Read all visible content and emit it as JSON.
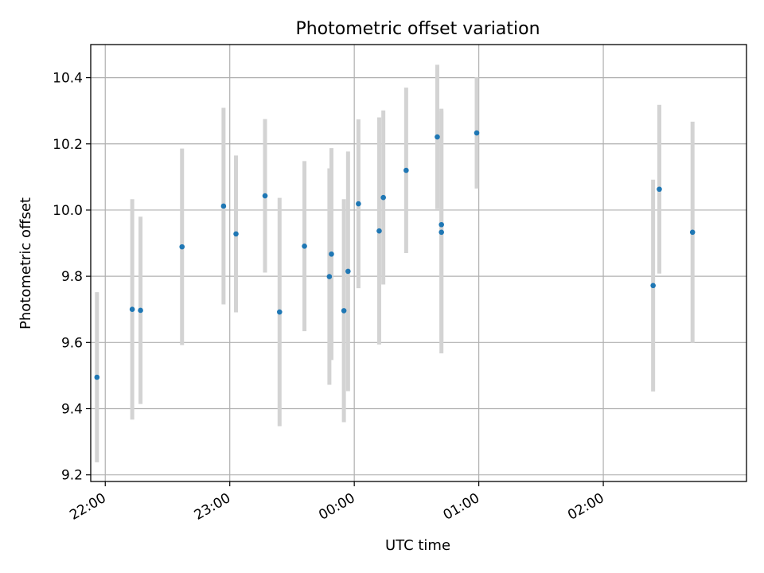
{
  "chart_data": {
    "type": "scatter",
    "title": "Photometric offset variation",
    "xlabel": "UTC time",
    "ylabel": "Photometric offset",
    "x_tick_labels": [
      "22:00",
      "23:00",
      "00:00",
      "01:00",
      "02:00"
    ],
    "y_tick_labels": [
      "9.2",
      "9.4",
      "9.6",
      "9.8",
      "10.0",
      "10.2",
      "10.4"
    ],
    "xlim": [
      "21:53",
      "03:09"
    ],
    "ylim": [
      9.18,
      10.5
    ],
    "grid": true,
    "colors": {
      "point": "#1f77b4",
      "errorbar": "#d3d3d3",
      "grid": "#b0b0b0"
    },
    "series": [
      {
        "points": [
          {
            "x": "21:56",
            "y": 9.495,
            "err": 0.257
          },
          {
            "x": "22:13",
            "y": 9.7,
            "err": 0.333
          },
          {
            "x": "22:17",
            "y": 9.697,
            "err": 0.283
          },
          {
            "x": "22:37",
            "y": 9.889,
            "err": 0.297
          },
          {
            "x": "22:57",
            "y": 10.012,
            "err": 0.297
          },
          {
            "x": "23:03",
            "y": 9.928,
            "err": 0.237
          },
          {
            "x": "23:17",
            "y": 10.043,
            "err": 0.232
          },
          {
            "x": "23:24",
            "y": 9.692,
            "err": 0.345
          },
          {
            "x": "23:36",
            "y": 9.891,
            "err": 0.257
          },
          {
            "x": "23:48",
            "y": 9.799,
            "err": 0.327
          },
          {
            "x": "23:49",
            "y": 9.867,
            "err": 0.32
          },
          {
            "x": "23:55",
            "y": 9.696,
            "err": 0.337
          },
          {
            "x": "23:57",
            "y": 9.815,
            "err": 0.362
          },
          {
            "x": "00:02",
            "y": 10.019,
            "err": 0.255
          },
          {
            "x": "00:12",
            "y": 9.937,
            "err": 0.343
          },
          {
            "x": "00:14",
            "y": 10.038,
            "err": 0.263
          },
          {
            "x": "00:25",
            "y": 10.12,
            "err": 0.25
          },
          {
            "x": "00:40",
            "y": 10.221,
            "err": 0.218
          },
          {
            "x": "00:42",
            "y": 9.956,
            "err": 0.35
          },
          {
            "x": "00:42",
            "y": 9.933,
            "err": 0.366
          },
          {
            "x": "00:59",
            "y": 10.233,
            "err": 0.168
          },
          {
            "x": "02:24",
            "y": 9.772,
            "err": 0.32
          },
          {
            "x": "02:27",
            "y": 10.063,
            "err": 0.255
          },
          {
            "x": "02:43",
            "y": 9.933,
            "err": 0.334
          }
        ]
      }
    ]
  }
}
